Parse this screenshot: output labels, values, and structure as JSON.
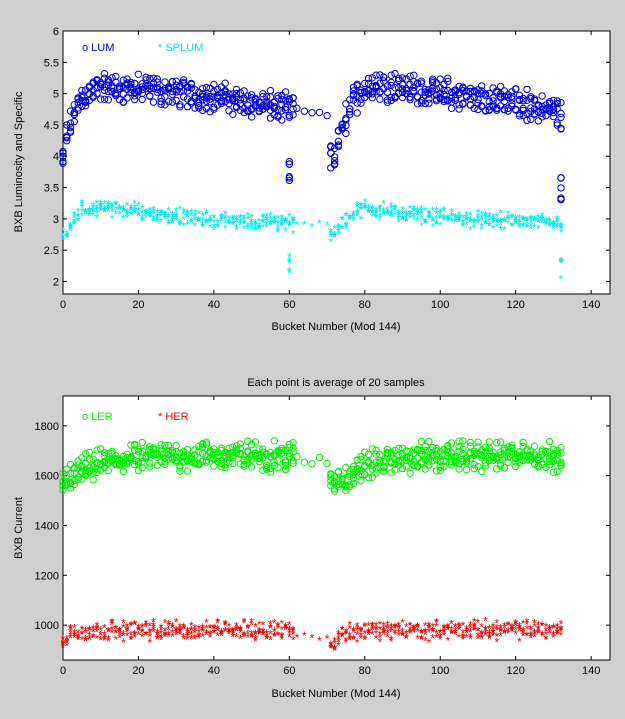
{
  "figure": {
    "background": "#cfcfcf"
  },
  "chart_data": [
    {
      "type": "scatter",
      "title": "",
      "xlabel": "Bucket Number (Mod 144)",
      "ylabel": "BXB Luminosity and Specific",
      "xlim": [
        0,
        145
      ],
      "ylim": [
        1.8,
        6
      ],
      "xticks": [
        0,
        20,
        40,
        60,
        80,
        100,
        120,
        140
      ],
      "yticks": [
        2,
        2.5,
        3,
        3.5,
        4,
        4.5,
        5,
        5.5,
        6
      ],
      "legend_position": "top-left",
      "grid": false,
      "series": [
        {
          "name": "LUM",
          "legend_label": "o LUM",
          "marker": "o",
          "color": "#0000d8",
          "x_range": [
            0,
            132
          ],
          "profile": [
            [
              0,
              3.9
            ],
            [
              1,
              4.3
            ],
            [
              3,
              4.7
            ],
            [
              5,
              4.95
            ],
            [
              10,
              5.1
            ],
            [
              25,
              5.05
            ],
            [
              40,
              4.95
            ],
            [
              60,
              4.75
            ]
          ],
          "spread": 0.28,
          "gap": [
            61,
            71
          ],
          "gap_value": 4.7,
          "profile2": [
            [
              72,
              4.0
            ],
            [
              73,
              4.25
            ],
            [
              75,
              4.6
            ],
            [
              77,
              4.9
            ],
            [
              80,
              5.1
            ],
            [
              85,
              5.15
            ],
            [
              100,
              5.0
            ],
            [
              120,
              4.85
            ],
            [
              132,
              4.7
            ]
          ],
          "edge_drops": [
            [
              60,
              3.6,
              3.95
            ],
            [
              132,
              3.3,
              3.85
            ]
          ]
        },
        {
          "name": "SPLUM",
          "legend_label": "* SPLUM",
          "marker": "*",
          "color": "#00e8e8",
          "x_range": [
            0,
            132
          ],
          "profile": [
            [
              0,
              2.7
            ],
            [
              2,
              2.85
            ],
            [
              5,
              3.1
            ],
            [
              10,
              3.15
            ],
            [
              25,
              3.05
            ],
            [
              40,
              2.95
            ],
            [
              60,
              2.9
            ]
          ],
          "spread": 0.16,
          "gap": [
            61,
            71
          ],
          "gap_value": 2.9,
          "profile2": [
            [
              72,
              2.75
            ],
            [
              74,
              2.9
            ],
            [
              77,
              3.05
            ],
            [
              80,
              3.15
            ],
            [
              90,
              3.05
            ],
            [
              110,
              2.95
            ],
            [
              132,
              2.9
            ]
          ],
          "edge_drops": [
            [
              60,
              2.1,
              2.4
            ],
            [
              132,
              2.0,
              2.35
            ]
          ]
        }
      ]
    },
    {
      "type": "scatter",
      "title": "Each point is average of 20 samples",
      "xlabel": "Bucket Number (Mod 144)",
      "ylabel": "BXB Current",
      "xlim": [
        0,
        145
      ],
      "ylim": [
        860,
        1920
      ],
      "xticks": [
        0,
        20,
        40,
        60,
        80,
        100,
        120,
        140
      ],
      "yticks": [
        1000,
        1200,
        1400,
        1600,
        1800
      ],
      "legend_position": "top-left",
      "grid": false,
      "series": [
        {
          "name": "LER",
          "legend_label": "o LER",
          "marker": "o",
          "color": "#00ee00",
          "x_range": [
            0,
            132
          ],
          "profile": [
            [
              0,
              1570
            ],
            [
              3,
              1600
            ],
            [
              8,
              1640
            ],
            [
              15,
              1665
            ],
            [
              30,
              1680
            ],
            [
              60,
              1680
            ]
          ],
          "spread": 70,
          "gap": [
            61,
            71
          ],
          "gap_value": 1660,
          "profile2": [
            [
              72,
              1580
            ],
            [
              76,
              1600
            ],
            [
              80,
              1640
            ],
            [
              90,
              1670
            ],
            [
              110,
              1680
            ],
            [
              132,
              1675
            ]
          ],
          "edge_drops": []
        },
        {
          "name": "HER",
          "legend_label": "* HER",
          "marker": "*",
          "color": "#ee0000",
          "x_range": [
            0,
            132
          ],
          "profile": [
            [
              0,
              920
            ],
            [
              2,
              960
            ],
            [
              10,
              970
            ],
            [
              60,
              975
            ]
          ],
          "spread": 45,
          "gap": [
            61,
            71
          ],
          "gap_value": 945,
          "profile2": [
            [
              72,
              920
            ],
            [
              74,
              960
            ],
            [
              80,
              970
            ],
            [
              132,
              975
            ]
          ],
          "edge_drops": []
        }
      ]
    }
  ]
}
